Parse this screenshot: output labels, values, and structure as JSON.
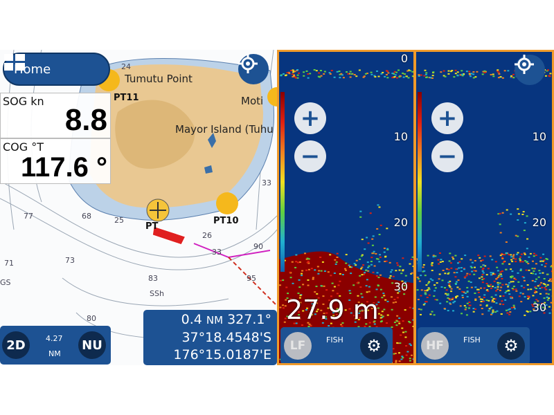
{
  "map": {
    "home_label": "Home",
    "sog": {
      "label": "SOG kn",
      "value": "8.8"
    },
    "cog": {
      "label": "COG °T",
      "value": "117.6 °"
    },
    "places": [
      "Tumutu Point",
      "Mayor Island (Tuhu",
      "Moti"
    ],
    "waypoints": [
      "PT11",
      "PT10",
      "PT"
    ],
    "depths": [
      "24",
      "77",
      "68",
      "71",
      "73",
      "83",
      "95",
      "90",
      "33",
      "33",
      "80",
      "25",
      "26",
      "GS",
      "SSh"
    ],
    "scale": {
      "mode_2d": "2D",
      "range_value": "4.27",
      "range_unit": "NM",
      "orientation": "NU"
    },
    "cursor": {
      "distance": "0.4",
      "distance_unit": "NM",
      "bearing": "327.1°",
      "lat": "37°18.4548'S",
      "lon": "176°15.0187'E"
    }
  },
  "sonar": {
    "depth_readout": "27.9 m",
    "scale_ticks": [
      "0",
      "10",
      "20",
      "30"
    ],
    "left": {
      "freq": "LF",
      "mode": "FISH"
    },
    "right": {
      "freq": "HF",
      "mode": "FISH"
    }
  },
  "colors": {
    "accent": "#1d5293",
    "frame": "#f09a2a",
    "water": "#07357f",
    "land": "#e9c892"
  }
}
